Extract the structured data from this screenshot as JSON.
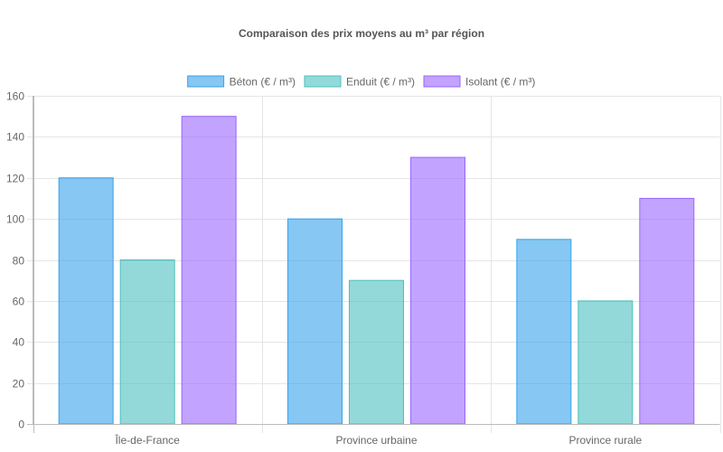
{
  "chart_data": {
    "type": "bar",
    "title": "Comparaison des prix moyens au m³ par région",
    "categories": [
      "Île-de-France",
      "Province urbaine",
      "Province rurale"
    ],
    "series": [
      {
        "name": "Béton (€ / m³)",
        "values": [
          120,
          100,
          90
        ],
        "color": "#36a2eb"
      },
      {
        "name": "Enduit (€ / m³)",
        "values": [
          80,
          70,
          60
        ],
        "color": "#4bc0c0"
      },
      {
        "name": "Isolant (€ / m³)",
        "values": [
          150,
          130,
          110
        ],
        "color": "#9966ff"
      }
    ],
    "ylim": [
      0,
      160
    ],
    "yticks": [
      0,
      20,
      40,
      60,
      80,
      100,
      120,
      140,
      160
    ],
    "xlabel": "",
    "ylabel": "",
    "grid": true,
    "legend_position": "top"
  }
}
